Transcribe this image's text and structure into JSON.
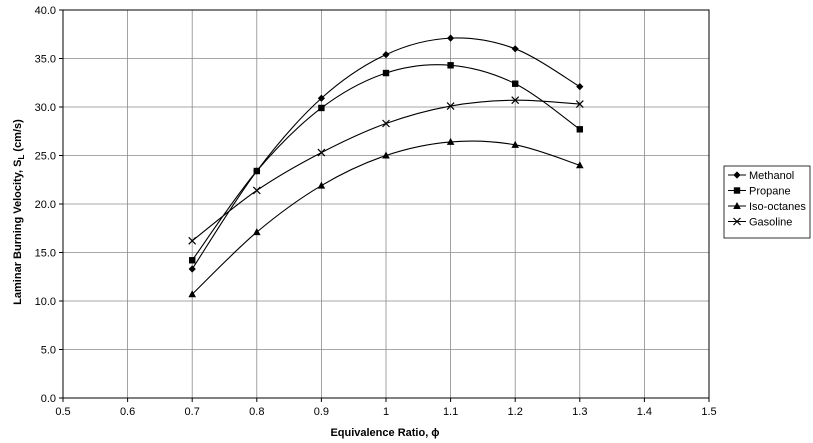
{
  "chart_data": {
    "type": "line",
    "title": "",
    "xlabel": "Equivalence Ratio, ϕ",
    "ylabel_main": "Laminar Burning Velocity, S",
    "ylabel_sub": "L",
    "ylabel_unit": " (cm/s)",
    "xlim": [
      0.5,
      1.5
    ],
    "ylim": [
      0.0,
      40.0
    ],
    "x_ticks": [
      "0.5",
      "0.6",
      "0.7",
      "0.8",
      "0.9",
      "1",
      "1.1",
      "1.2",
      "1.3",
      "1.4",
      "1.5"
    ],
    "y_ticks": [
      "0.0",
      "5.0",
      "10.0",
      "15.0",
      "20.0",
      "25.0",
      "30.0",
      "35.0",
      "40.0"
    ],
    "grid": true,
    "legend_position": "right",
    "x": [
      0.7,
      0.8,
      0.9,
      1.0,
      1.1,
      1.2,
      1.3
    ],
    "series": [
      {
        "name": "Methanol",
        "marker": "diamond",
        "values": [
          13.3,
          23.4,
          30.9,
          35.4,
          37.1,
          36.0,
          32.1
        ]
      },
      {
        "name": "Propane",
        "marker": "square",
        "values": [
          14.2,
          23.4,
          29.9,
          33.5,
          34.3,
          32.4,
          27.7
        ]
      },
      {
        "name": "Iso-octanes",
        "marker": "triangle",
        "values": [
          10.7,
          17.1,
          21.9,
          25.0,
          26.4,
          26.1,
          24.0
        ]
      },
      {
        "name": "Gasoline",
        "marker": "cross",
        "values": [
          16.2,
          21.4,
          25.3,
          28.3,
          30.1,
          30.7,
          30.3
        ]
      }
    ]
  }
}
